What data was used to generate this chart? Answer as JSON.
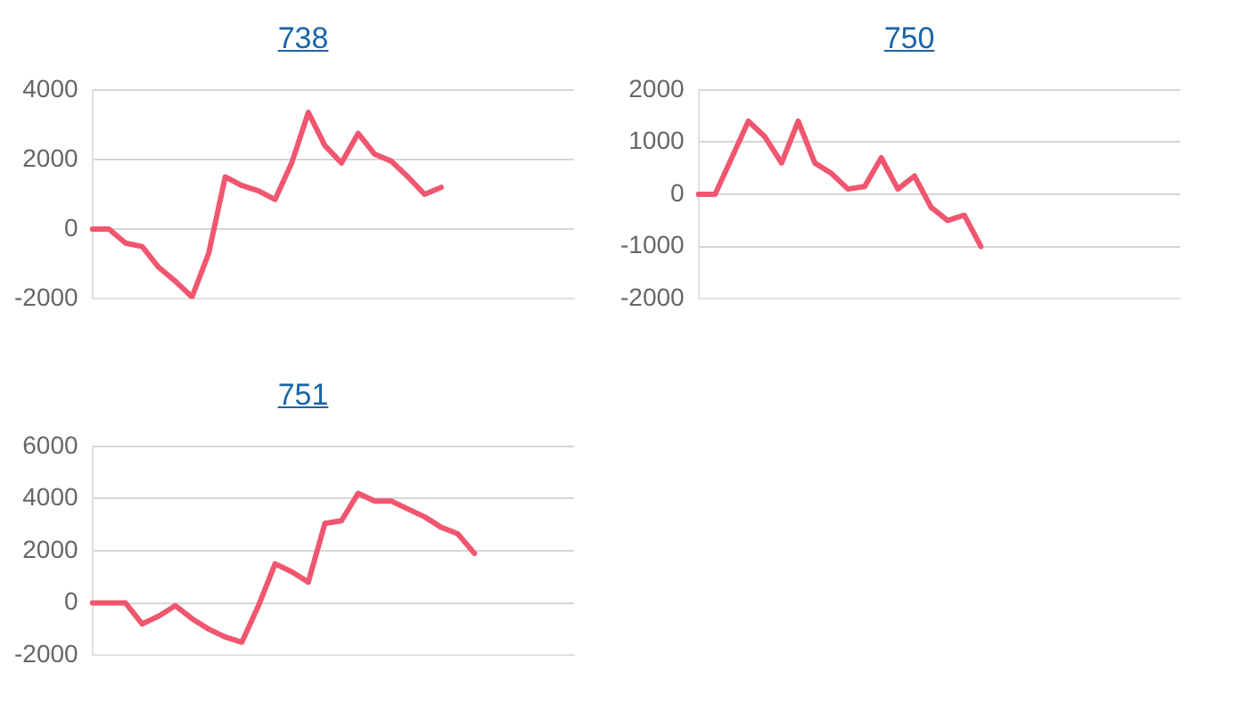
{
  "chart_data": [
    {
      "type": "line",
      "title": "738",
      "categories": [
        null,
        null,
        null,
        null,
        null,
        null,
        null,
        null,
        null,
        null,
        null,
        null,
        null,
        null,
        null,
        null,
        null,
        null,
        null,
        null,
        null,
        null,
        null,
        null,
        null,
        null,
        null,
        null,
        null,
        null
      ],
      "series": [
        {
          "color": "#f0566f",
          "values": [
            0,
            0,
            -400,
            -500,
            -1100,
            -1500,
            -1950,
            -700,
            1500,
            1250,
            1100,
            850,
            1900,
            3350,
            2400,
            1900,
            2750,
            2150,
            1950,
            1500,
            1000,
            1200,
            null,
            null,
            null,
            null,
            null,
            null,
            null,
            null
          ]
        }
      ],
      "ylim": [
        -2000,
        4000
      ],
      "yticks": [
        -2000,
        0,
        2000,
        4000
      ],
      "grid": "y",
      "tick_labels": "y",
      "marker": "none",
      "line_style": "solid",
      "legend": false
    },
    {
      "type": "line",
      "title": "750",
      "categories": [
        null,
        null,
        null,
        null,
        null,
        null,
        null,
        null,
        null,
        null,
        null,
        null,
        null,
        null,
        null,
        null,
        null,
        null,
        null,
        null,
        null,
        null,
        null,
        null,
        null,
        null,
        null,
        null,
        null,
        null
      ],
      "series": [
        {
          "color": "#f0566f",
          "values": [
            0,
            0,
            700,
            1400,
            1100,
            600,
            1400,
            600,
            400,
            100,
            150,
            700,
            100,
            350,
            -250,
            -500,
            -400,
            -1000,
            null,
            null,
            null,
            null,
            null,
            null,
            null,
            null,
            null,
            null,
            null,
            null
          ]
        }
      ],
      "ylim": [
        -2000,
        2000
      ],
      "yticks": [
        -2000,
        -1000,
        0,
        1000,
        2000
      ],
      "grid": "y",
      "tick_labels": "y",
      "marker": "none",
      "line_style": "solid",
      "legend": false
    },
    {
      "type": "line",
      "title": "751",
      "categories": [
        null,
        null,
        null,
        null,
        null,
        null,
        null,
        null,
        null,
        null,
        null,
        null,
        null,
        null,
        null,
        null,
        null,
        null,
        null,
        null,
        null,
        null,
        null,
        null,
        null,
        null,
        null,
        null,
        null,
        null
      ],
      "series": [
        {
          "color": "#f0566f",
          "values": [
            0,
            0,
            0,
            -800,
            -500,
            -100,
            -600,
            -1000,
            -1300,
            -1500,
            -100,
            1500,
            1200,
            800,
            3050,
            3150,
            4200,
            3900,
            3900,
            3600,
            3300,
            2900,
            2650,
            1900,
            null,
            null,
            null,
            null,
            null,
            null
          ]
        }
      ],
      "ylim": [
        -2000,
        6000
      ],
      "yticks": [
        -2000,
        0,
        2000,
        4000,
        6000
      ],
      "grid": "y",
      "tick_labels": "y",
      "marker": "none",
      "line_style": "solid",
      "legend": false
    }
  ]
}
